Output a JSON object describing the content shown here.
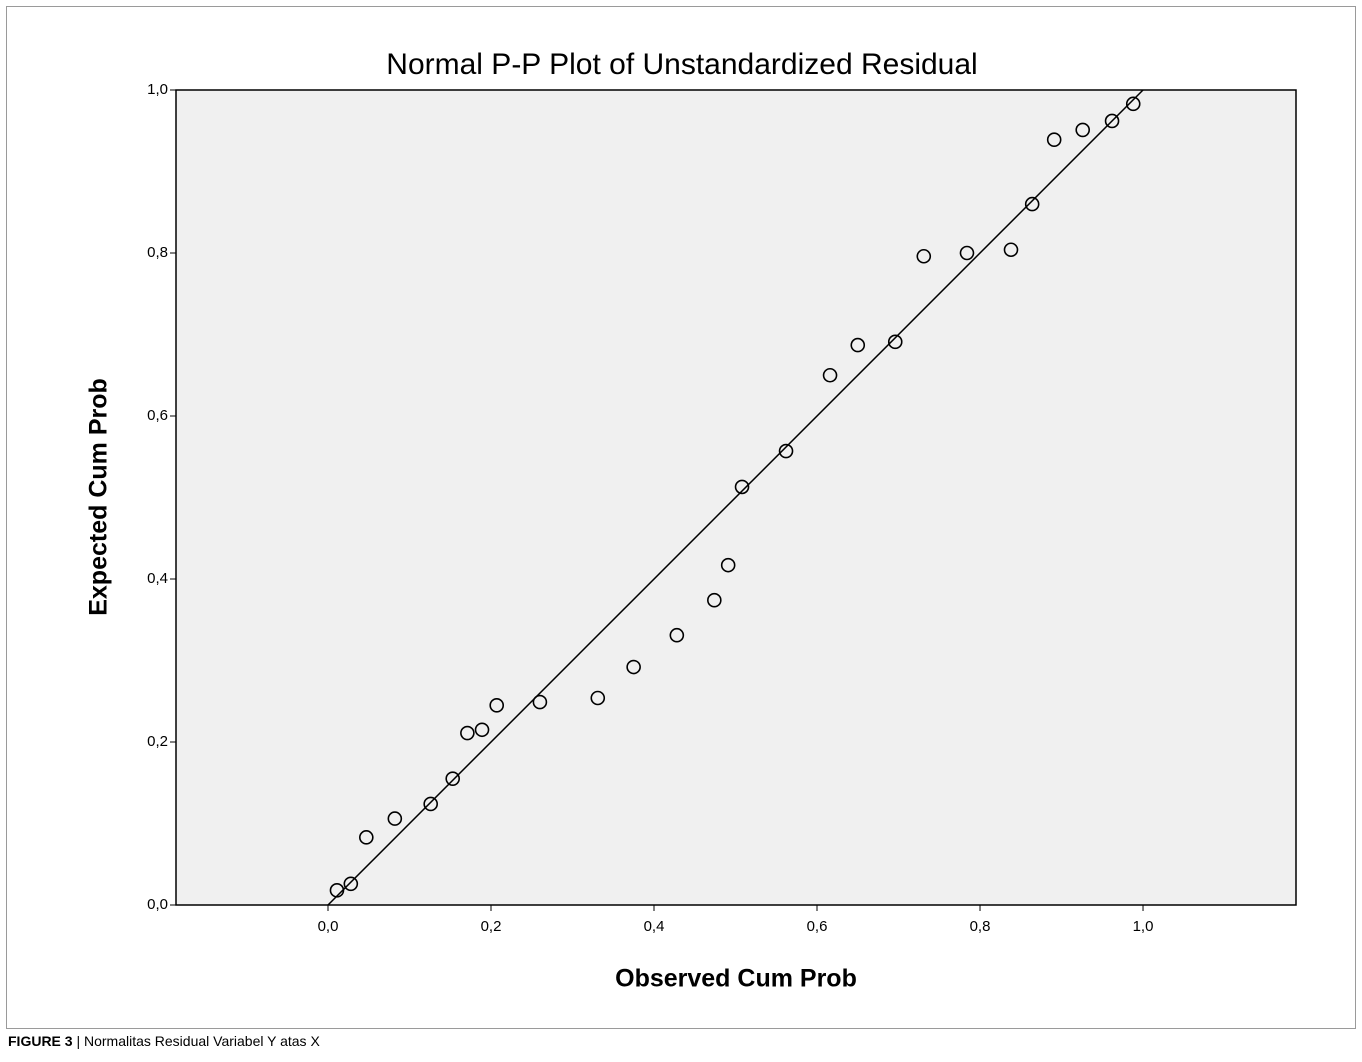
{
  "chart_data": {
    "type": "scatter",
    "title": "Normal P-P Plot of Unstandardized Residual",
    "x_label": "Observed Cum Prob",
    "y_label": "Expected Cum Prob",
    "series": [
      {
        "color": "#000000",
        "x": [
          0.011,
          0.028,
          0.047,
          0.082,
          0.126,
          0.153,
          0.171,
          0.189,
          0.207,
          0.26,
          0.331,
          0.375,
          0.428,
          0.474,
          0.491,
          0.508,
          0.562,
          0.616,
          0.65,
          0.696,
          0.731,
          0.784,
          0.838,
          0.864,
          0.891,
          0.926,
          0.962,
          0.988
        ],
        "values": [
          0.018,
          0.026,
          0.083,
          0.106,
          0.124,
          0.155,
          0.211,
          0.215,
          0.245,
          0.249,
          0.254,
          0.292,
          0.331,
          0.374,
          0.417,
          0.513,
          0.557,
          0.65,
          0.687,
          0.691,
          0.796,
          0.8,
          0.804,
          0.86,
          0.939,
          0.951,
          0.962,
          0.983
        ]
      }
    ],
    "reference_line": {
      "x": [
        0,
        1
      ],
      "y": [
        0,
        1
      ]
    },
    "xlim": [
      -0.1865,
      1.1877
    ],
    "ylim": [
      0,
      1
    ],
    "xticks": [
      {
        "value": 0,
        "label": "0,0"
      },
      {
        "value": 0.2,
        "label": "0,2"
      },
      {
        "value": 0.4,
        "label": "0,4"
      },
      {
        "value": 0.6,
        "label": "0,6"
      },
      {
        "value": 0.8,
        "label": "0,8"
      },
      {
        "value": 1,
        "label": "1,0"
      }
    ],
    "yticks": [
      {
        "value": 0,
        "label": "0,0"
      },
      {
        "value": 0.2,
        "label": "0,2"
      },
      {
        "value": 0.4,
        "label": "0,4"
      },
      {
        "value": 0.6,
        "label": "0,6"
      },
      {
        "value": 0.8,
        "label": "0,8"
      },
      {
        "value": 1,
        "label": "1,0"
      }
    ],
    "plot_background": "#f0f0f0"
  },
  "caption": {
    "label": "FIGURE 3",
    "text": "| Normalitas Residual Variabel Y atas X"
  }
}
